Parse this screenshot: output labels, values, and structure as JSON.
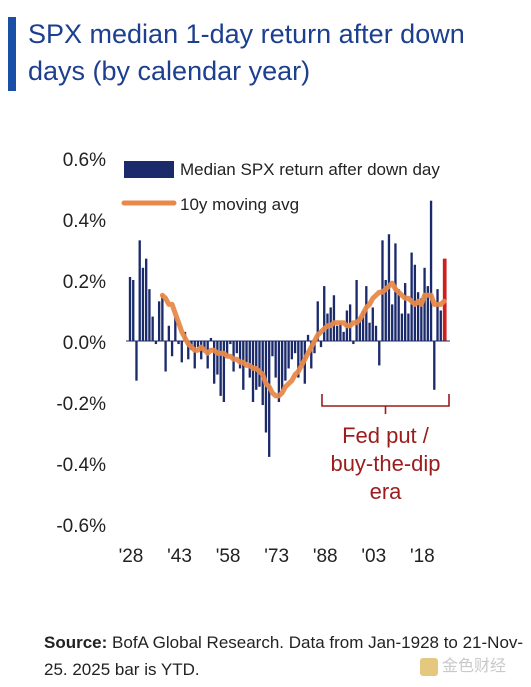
{
  "page": {
    "title": "SPX median 1-day return after down days (by calendar year)",
    "source_label": "Source:",
    "source_text": "BofA Global Research. Data from Jan-1928 to 21-Nov-25. 2025 bar is YTD.",
    "watermark": "金色财经"
  },
  "colors": {
    "bar": "#1b2a6b",
    "ytd_bar": "#cc1f1f",
    "moving_avg": "#e8894a",
    "annotation": "#9b1c1c",
    "title": "#1c3f8f",
    "accent": "#1a4fa8"
  },
  "chart_data": {
    "type": "bar",
    "title": "SPX median 1-day return after down days (by calendar year)",
    "y_unit": "%",
    "ylim": [
      -0.6,
      0.6
    ],
    "yticks": [
      0.6,
      0.4,
      0.2,
      0.0,
      -0.2,
      -0.4,
      -0.6
    ],
    "ytick_labels": [
      "0.6%",
      "0.4%",
      "0.2%",
      "0.0%",
      "-0.2%",
      "-0.4%",
      "-0.6%"
    ],
    "xtick_labels": [
      "'28",
      "'43",
      "'58",
      "'73",
      "'88",
      "'03",
      "'18"
    ],
    "xtick_years": [
      1928,
      1943,
      1958,
      1973,
      1988,
      2003,
      2018
    ],
    "legend": {
      "placement": "top-left",
      "bars_label": "Median SPX return after down day",
      "line_label": "10y moving avg"
    },
    "annotation": {
      "lines": [
        "Fed put /",
        "buy-the-dip",
        "era"
      ],
      "from_year": 1987,
      "to_year": 2025
    },
    "ytd_year": 2025,
    "years": [
      1928,
      1929,
      1930,
      1931,
      1932,
      1933,
      1934,
      1935,
      1936,
      1937,
      1938,
      1939,
      1940,
      1941,
      1942,
      1943,
      1944,
      1945,
      1946,
      1947,
      1948,
      1949,
      1950,
      1951,
      1952,
      1953,
      1954,
      1955,
      1956,
      1957,
      1958,
      1959,
      1960,
      1961,
      1962,
      1963,
      1964,
      1965,
      1966,
      1967,
      1968,
      1969,
      1970,
      1971,
      1972,
      1973,
      1974,
      1975,
      1976,
      1977,
      1978,
      1979,
      1980,
      1981,
      1982,
      1983,
      1984,
      1985,
      1986,
      1987,
      1988,
      1989,
      1990,
      1991,
      1992,
      1993,
      1994,
      1995,
      1996,
      1997,
      1998,
      1999,
      2000,
      2001,
      2002,
      2003,
      2004,
      2005,
      2006,
      2007,
      2008,
      2009,
      2010,
      2011,
      2012,
      2013,
      2014,
      2015,
      2016,
      2017,
      2018,
      2019,
      2020,
      2021,
      2022,
      2023,
      2024,
      2025
    ],
    "series": [
      {
        "name": "Median SPX return after down day",
        "values": [
          0.21,
          0.2,
          -0.13,
          0.33,
          0.24,
          0.27,
          0.17,
          0.08,
          -0.01,
          0.13,
          0.15,
          -0.1,
          0.05,
          -0.05,
          0.08,
          -0.01,
          -0.07,
          0.03,
          -0.06,
          -0.03,
          -0.09,
          -0.02,
          -0.06,
          -0.03,
          -0.09,
          0.01,
          -0.14,
          -0.11,
          -0.18,
          -0.2,
          -0.05,
          -0.01,
          -0.1,
          -0.04,
          -0.09,
          -0.16,
          -0.07,
          -0.12,
          -0.2,
          -0.16,
          -0.15,
          -0.21,
          -0.3,
          -0.38,
          -0.05,
          -0.12,
          -0.2,
          -0.16,
          -0.13,
          -0.09,
          -0.06,
          -0.04,
          -0.12,
          -0.08,
          -0.14,
          0.02,
          -0.09,
          -0.04,
          0.13,
          -0.02,
          0.18,
          0.09,
          0.11,
          0.15,
          0.05,
          0.06,
          0.03,
          0.1,
          0.12,
          -0.01,
          0.2,
          0.08,
          0.1,
          0.18,
          0.06,
          0.11,
          0.05,
          -0.08,
          0.33,
          0.2,
          0.35,
          0.12,
          0.32,
          0.17,
          0.09,
          0.19,
          0.09,
          0.29,
          0.25,
          0.16,
          0.14,
          0.24,
          0.18,
          0.46,
          -0.16,
          0.17,
          0.1,
          0.27
        ]
      },
      {
        "name": "10y moving avg",
        "values": [
          null,
          null,
          null,
          null,
          null,
          null,
          null,
          null,
          null,
          null,
          0.15,
          0.14,
          0.12,
          0.12,
          0.09,
          0.06,
          0.03,
          0.01,
          -0.01,
          -0.02,
          -0.03,
          -0.03,
          -0.02,
          -0.03,
          -0.04,
          -0.03,
          -0.03,
          -0.04,
          -0.04,
          -0.04,
          -0.05,
          -0.05,
          -0.06,
          -0.06,
          -0.07,
          -0.07,
          -0.08,
          -0.08,
          -0.09,
          -0.09,
          -0.1,
          -0.11,
          -0.14,
          -0.15,
          -0.17,
          -0.18,
          -0.18,
          -0.17,
          -0.15,
          -0.14,
          -0.13,
          -0.11,
          -0.1,
          -0.08,
          -0.06,
          -0.04,
          -0.02,
          0.0,
          0.02,
          0.03,
          0.04,
          0.05,
          0.05,
          0.06,
          0.06,
          0.06,
          0.06,
          0.05,
          0.05,
          0.06,
          0.06,
          0.07,
          0.09,
          0.11,
          0.12,
          0.14,
          0.15,
          0.16,
          0.16,
          0.17,
          0.18,
          0.19,
          0.17,
          0.16,
          0.15,
          0.14,
          0.14,
          0.13,
          0.12,
          0.13,
          0.12,
          0.15,
          0.15,
          0.15,
          0.12,
          0.12,
          0.12,
          0.13
        ]
      }
    ]
  }
}
